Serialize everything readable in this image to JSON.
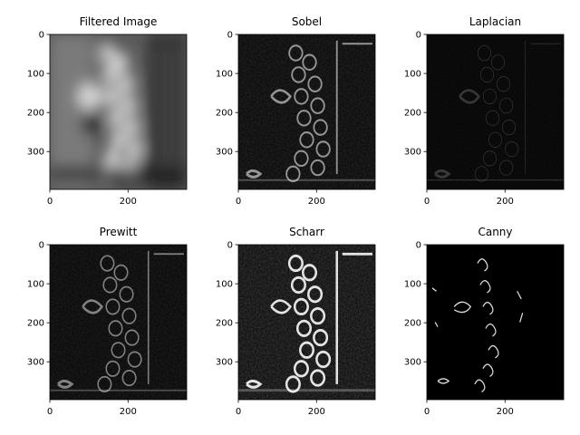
{
  "figure": {
    "panels": [
      {
        "title": "Filtered Image",
        "kind": "filtered"
      },
      {
        "title": "Sobel",
        "kind": "sobel"
      },
      {
        "title": "Laplacian",
        "kind": "laplacian"
      },
      {
        "title": "Prewitt",
        "kind": "prewitt"
      },
      {
        "title": "Scharr",
        "kind": "scharr"
      },
      {
        "title": "Canny",
        "kind": "canny"
      }
    ]
  },
  "chart_data": [
    {
      "type": "heatmap",
      "title": "Filtered Image",
      "xlim": [
        0,
        350
      ],
      "ylim": [
        397,
        0
      ],
      "x_ticks": [
        0,
        200
      ],
      "x_tick_labels": [
        "0",
        "200"
      ],
      "y_ticks": [
        0,
        100,
        200,
        300
      ],
      "y_tick_labels": [
        "0",
        "100",
        "200",
        "300"
      ],
      "colormap": "gray"
    },
    {
      "type": "heatmap",
      "title": "Sobel",
      "xlim": [
        0,
        350
      ],
      "ylim": [
        397,
        0
      ],
      "x_ticks": [
        0,
        200
      ],
      "x_tick_labels": [
        "0",
        "200"
      ],
      "y_ticks": [
        0,
        100,
        200,
        300
      ],
      "y_tick_labels": [
        "0",
        "100",
        "200",
        "300"
      ],
      "colormap": "gray"
    },
    {
      "type": "heatmap",
      "title": "Laplacian",
      "xlim": [
        0,
        350
      ],
      "ylim": [
        397,
        0
      ],
      "x_ticks": [
        0,
        200
      ],
      "x_tick_labels": [
        "0",
        "200"
      ],
      "y_ticks": [
        0,
        100,
        200,
        300
      ],
      "y_tick_labels": [
        "0",
        "100",
        "200",
        "300"
      ],
      "colormap": "gray"
    },
    {
      "type": "heatmap",
      "title": "Prewitt",
      "xlim": [
        0,
        350
      ],
      "ylim": [
        397,
        0
      ],
      "x_ticks": [
        0,
        200
      ],
      "x_tick_labels": [
        "0",
        "200"
      ],
      "y_ticks": [
        0,
        100,
        200,
        300
      ],
      "y_tick_labels": [
        "0",
        "100",
        "200",
        "300"
      ],
      "colormap": "gray"
    },
    {
      "type": "heatmap",
      "title": "Scharr",
      "xlim": [
        0,
        350
      ],
      "ylim": [
        397,
        0
      ],
      "x_ticks": [
        0,
        200
      ],
      "x_tick_labels": [
        "0",
        "200"
      ],
      "y_ticks": [
        0,
        100,
        200,
        300
      ],
      "y_tick_labels": [
        "0",
        "100",
        "200",
        "300"
      ],
      "colormap": "gray"
    },
    {
      "type": "heatmap",
      "title": "Canny",
      "xlim": [
        0,
        350
      ],
      "ylim": [
        397,
        0
      ],
      "x_ticks": [
        0,
        200
      ],
      "x_tick_labels": [
        "0",
        "200"
      ],
      "y_ticks": [
        0,
        100,
        200,
        300
      ],
      "y_tick_labels": [
        "0",
        "100",
        "200",
        "300"
      ],
      "colormap": "gray"
    }
  ]
}
